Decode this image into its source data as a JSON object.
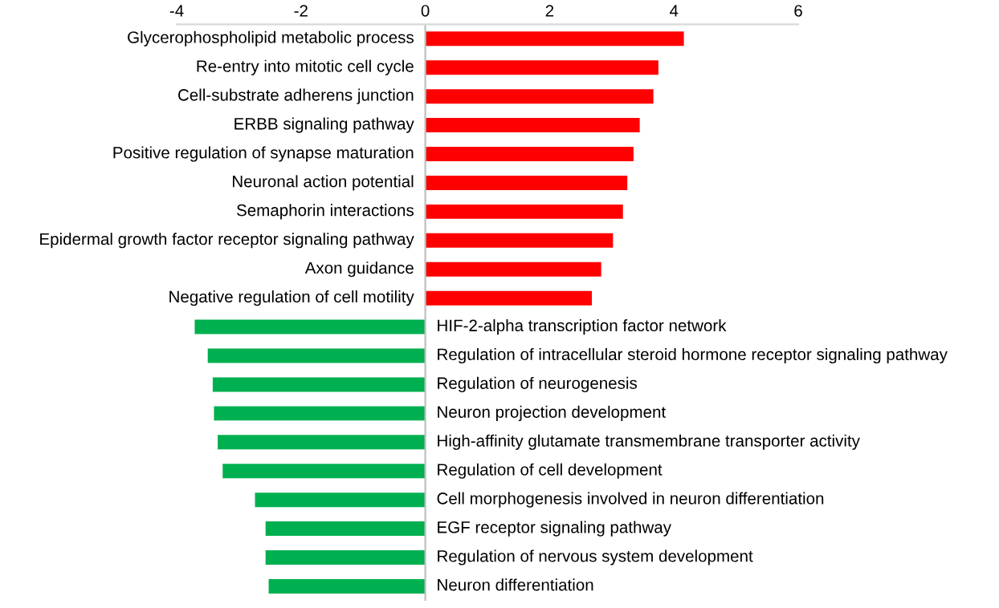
{
  "chart_data": {
    "type": "bar",
    "orientation": "horizontal",
    "categories": [
      "Glycerophospholipid metabolic process",
      "Re-entry into mitotic cell cycle",
      "Cell-substrate adherens junction",
      "ERBB signaling pathway",
      "Positive regulation of synapse maturation",
      "Neuronal action potential",
      "Semaphorin interactions",
      "Epidermal growth factor receptor signaling pathway",
      "Axon guidance",
      "Negative regulation of cell motility",
      "HIF-2-alpha transcription factor network",
      "Regulation of intracellular steroid hormone receptor signaling pathway",
      "Regulation of neurogenesis",
      "Neuron projection development",
      "High-affinity glutamate transmembrane transporter activity",
      "Regulation of cell development",
      "Cell morphogenesis involved in neuron differentiation",
      "EGF receptor signaling pathway",
      "Regulation of nervous system development",
      "Neuron differentiation"
    ],
    "values": [
      4.16,
      3.75,
      3.67,
      3.45,
      3.35,
      3.25,
      3.18,
      3.02,
      2.83,
      2.68,
      -3.71,
      -3.5,
      -3.42,
      -3.4,
      -3.34,
      -3.26,
      -2.74,
      -2.57,
      -2.57,
      -2.52
    ],
    "colors": [
      "#ff0000",
      "#ff0000",
      "#ff0000",
      "#ff0000",
      "#ff0000",
      "#ff0000",
      "#ff0000",
      "#ff0000",
      "#ff0000",
      "#ff0000",
      "#00b050",
      "#00b050",
      "#00b050",
      "#00b050",
      "#00b050",
      "#00b050",
      "#00b050",
      "#00b050",
      "#00b050",
      "#00b050"
    ],
    "xlim": [
      -4,
      6
    ],
    "xticks": [
      -4,
      -2,
      0,
      2,
      4,
      6
    ],
    "grid": false,
    "legend": false
  }
}
